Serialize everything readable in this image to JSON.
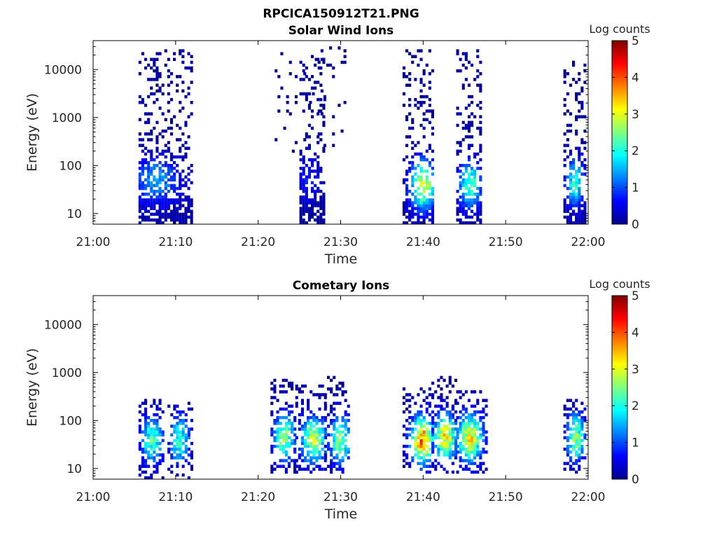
{
  "figure": {
    "title": "RPCICA150912T21.PNG"
  },
  "chart_data": [
    {
      "type": "heatmap",
      "title": "Solar Wind Ions",
      "xlabel": "Time",
      "ylabel": "Energy (eV)",
      "x_ticks": [
        "21:00",
        "21:10",
        "21:20",
        "21:30",
        "21:40",
        "21:50",
        "22:00"
      ],
      "y_ticks": [
        "10",
        "100",
        "1000",
        "10000"
      ],
      "y_scale": "log",
      "xlim": [
        "21:00",
        "22:00"
      ],
      "ylim": [
        6,
        40000
      ],
      "colorbar": {
        "label": "Log counts",
        "ticks": [
          "0",
          "1",
          "2",
          "3",
          "4",
          "5"
        ],
        "range": [
          0,
          5
        ],
        "colormap": "jet"
      },
      "activity": [
        {
          "start": "21:05.5",
          "end": "21:12.0",
          "emin": 6,
          "emax": 25000,
          "density": 0.62,
          "low_boost": 0.5,
          "peak_time": "21:07.5",
          "peak_energy": 50,
          "peak_value": 1.3
        },
        {
          "start": "21:22.0",
          "end": "21:30.5",
          "emin": 200,
          "emax": 30000,
          "density": 0.16,
          "low_boost": 0,
          "peak_time": null,
          "peak_energy": null,
          "peak_value": 0.3
        },
        {
          "start": "21:25.0",
          "end": "21:28.0",
          "emin": 6,
          "emax": 20000,
          "density": 0.52,
          "low_boost": 0.5,
          "peak_time": "21:26.0",
          "peak_energy": 60,
          "peak_value": 0.6
        },
        {
          "start": "21:37.5",
          "end": "21:41.0",
          "emin": 6,
          "emax": 25000,
          "density": 0.52,
          "low_boost": 0.5,
          "peak_time": "21:39.8",
          "peak_energy": 40,
          "peak_value": 3.0
        },
        {
          "start": "21:44.0",
          "end": "21:47.0",
          "emin": 6,
          "emax": 25000,
          "density": 0.55,
          "low_boost": 0.5,
          "peak_time": "21:45.5",
          "peak_energy": 40,
          "peak_value": 2.2
        },
        {
          "start": "21:57.0",
          "end": "21:59.5",
          "emin": 6,
          "emax": 20000,
          "density": 0.55,
          "low_boost": 0.5,
          "peak_time": "21:58.2",
          "peak_energy": 45,
          "peak_value": 2.0
        }
      ]
    },
    {
      "type": "heatmap",
      "title": "Cometary Ions",
      "xlabel": "Time",
      "ylabel": "Energy (eV)",
      "x_ticks": [
        "21:00",
        "21:10",
        "21:20",
        "21:30",
        "21:40",
        "21:50",
        "22:00"
      ],
      "y_ticks": [
        "10",
        "100",
        "1000",
        "10000"
      ],
      "y_scale": "log",
      "xlim": [
        "21:00",
        "22:00"
      ],
      "ylim": [
        6,
        40000
      ],
      "colorbar": {
        "label": "Log counts",
        "ticks": [
          "0",
          "1",
          "2",
          "3",
          "4",
          "5"
        ],
        "range": [
          0,
          5
        ],
        "colormap": "jet"
      },
      "activity": [
        {
          "start": "21:05.5",
          "end": "21:08.5",
          "emin": 6,
          "emax": 300,
          "density": 0.72,
          "low_boost": 0,
          "peak_time": "21:07.0",
          "peak_energy": 40,
          "peak_value": 2.2
        },
        {
          "start": "21:09.0",
          "end": "21:11.8",
          "emin": 6,
          "emax": 300,
          "density": 0.72,
          "low_boost": 0,
          "peak_time": "21:10.3",
          "peak_energy": 40,
          "peak_value": 2.1
        },
        {
          "start": "21:21.5",
          "end": "21:24.5",
          "emin": 8,
          "emax": 700,
          "density": 0.7,
          "low_boost": 0,
          "peak_time": "21:23.0",
          "peak_energy": 45,
          "peak_value": 2.5
        },
        {
          "start": "21:24.5",
          "end": "21:28.0",
          "emin": 8,
          "emax": 600,
          "density": 0.7,
          "low_boost": 0,
          "peak_time": "21:26.5",
          "peak_energy": 40,
          "peak_value": 2.7
        },
        {
          "start": "21:28.0",
          "end": "21:31.0",
          "emin": 8,
          "emax": 800,
          "density": 0.7,
          "low_boost": 0,
          "peak_time": "21:29.8",
          "peak_energy": 40,
          "peak_value": 2.6
        },
        {
          "start": "21:37.5",
          "end": "21:41.0",
          "emin": 8,
          "emax": 500,
          "density": 0.75,
          "low_boost": 0,
          "peak_time": "21:39.8",
          "peak_energy": 40,
          "peak_value": 3.7
        },
        {
          "start": "21:41.0",
          "end": "21:44.0",
          "emin": 8,
          "emax": 1000,
          "density": 0.72,
          "low_boost": 0,
          "peak_time": "21:42.5",
          "peak_energy": 45,
          "peak_value": 3.2
        },
        {
          "start": "21:44.0",
          "end": "21:47.5",
          "emin": 8,
          "emax": 400,
          "density": 0.72,
          "low_boost": 0,
          "peak_time": "21:45.5",
          "peak_energy": 45,
          "peak_value": 3.2
        },
        {
          "start": "21:57.0",
          "end": "21:59.5",
          "emin": 8,
          "emax": 300,
          "density": 0.72,
          "low_boost": 0,
          "peak_time": "21:58.3",
          "peak_energy": 45,
          "peak_value": 2.6
        }
      ]
    }
  ]
}
